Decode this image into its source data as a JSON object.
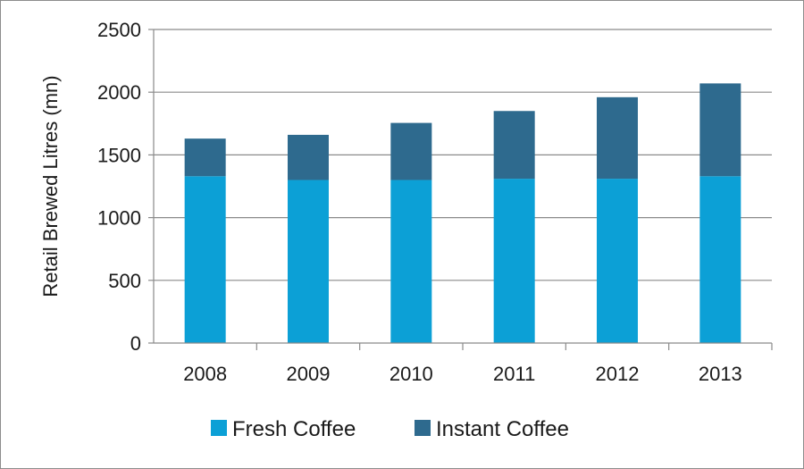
{
  "chart_data": {
    "type": "bar",
    "stacked": true,
    "title": "",
    "xlabel": "",
    "ylabel": "Retail Brewed Litres (mn)",
    "categories": [
      "2008",
      "2009",
      "2010",
      "2011",
      "2012",
      "2013"
    ],
    "series": [
      {
        "name": "Fresh Coffee",
        "color": "#0ca0d6",
        "values": [
          1330,
          1300,
          1300,
          1310,
          1310,
          1330
        ]
      },
      {
        "name": "Instant Coffee",
        "color": "#2e6a8e",
        "values": [
          300,
          360,
          455,
          540,
          650,
          740
        ]
      }
    ],
    "ylim": [
      0,
      2500
    ],
    "yticks": [
      0,
      500,
      1000,
      1500,
      2000,
      2500
    ],
    "grid": true,
    "legend_position": "bottom"
  }
}
